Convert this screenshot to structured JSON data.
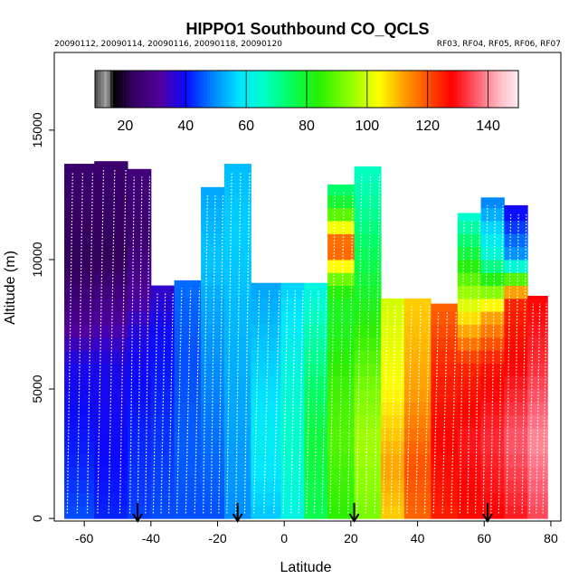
{
  "chart_data": {
    "type": "heatmap",
    "title": "HIPPO1 Southbound CO_QCLS",
    "subtitle_left": "20090112, 20090114, 20090116, 20090118, 20090120",
    "subtitle_right": "RF03, RF04, RF05, RF06, RF07",
    "xlabel": "Latitude",
    "ylabel": "Altitude (m)",
    "xlim": [
      -69,
      83
    ],
    "ylim": [
      -100,
      18000
    ],
    "xticks": [
      -60,
      -40,
      -20,
      0,
      20,
      40,
      60,
      80
    ],
    "yticks": [
      0,
      5000,
      10000,
      15000
    ],
    "colorbar": {
      "range": [
        10,
        150
      ],
      "ticks": [
        20,
        40,
        60,
        80,
        100,
        120,
        140
      ],
      "placement": "top-inside"
    },
    "arrows_latitude": [
      -44,
      -14,
      21,
      61
    ],
    "columns": [
      {
        "lat0": -66,
        "lat1": -57,
        "top": 13700,
        "values": [
          [
            0,
            45
          ],
          [
            2000,
            42
          ],
          [
            6000,
            38
          ],
          [
            8000,
            28
          ],
          [
            10000,
            22
          ],
          [
            14000,
            25
          ]
        ]
      },
      {
        "lat0": -57,
        "lat1": -47,
        "top": 13800,
        "values": [
          [
            0,
            42
          ],
          [
            2000,
            40
          ],
          [
            6000,
            38
          ],
          [
            8000,
            30
          ],
          [
            10000,
            22
          ],
          [
            14000,
            25
          ]
        ]
      },
      {
        "lat0": -47,
        "lat1": -40,
        "top": 13500,
        "values": [
          [
            0,
            44
          ],
          [
            3000,
            42
          ],
          [
            7000,
            38
          ],
          [
            9000,
            30
          ],
          [
            11000,
            25
          ],
          [
            14000,
            27
          ]
        ]
      },
      {
        "lat0": -40,
        "lat1": -33,
        "top": 9000,
        "values": [
          [
            0,
            45
          ],
          [
            3000,
            43
          ],
          [
            7000,
            40
          ],
          [
            9000,
            35
          ]
        ]
      },
      {
        "lat0": -33,
        "lat1": -25,
        "top": 9200,
        "values": [
          [
            0,
            45
          ],
          [
            3000,
            46
          ],
          [
            6000,
            45
          ],
          [
            9000,
            47
          ]
        ]
      },
      {
        "lat0": -25,
        "lat1": -18,
        "top": 12800,
        "values": [
          [
            0,
            45
          ],
          [
            4000,
            48
          ],
          [
            8000,
            52
          ],
          [
            10000,
            55
          ],
          [
            13000,
            52
          ]
        ]
      },
      {
        "lat0": -18,
        "lat1": -10,
        "top": 13700,
        "values": [
          [
            0,
            50
          ],
          [
            4000,
            52
          ],
          [
            8000,
            54
          ],
          [
            11000,
            56
          ],
          [
            14000,
            54
          ]
        ]
      },
      {
        "lat0": -10,
        "lat1": -1,
        "top": 9100,
        "values": [
          [
            0,
            55
          ],
          [
            3000,
            60
          ],
          [
            6000,
            56
          ],
          [
            9000,
            52
          ]
        ]
      },
      {
        "lat0": -1,
        "lat1": 6,
        "top": 9100,
        "values": [
          [
            0,
            62
          ],
          [
            3000,
            66
          ],
          [
            5000,
            64
          ],
          [
            8000,
            58
          ],
          [
            9000,
            56
          ]
        ]
      },
      {
        "lat0": 6,
        "lat1": 13,
        "top": 9100,
        "values": [
          [
            0,
            76
          ],
          [
            3000,
            78
          ],
          [
            5000,
            74
          ],
          [
            8000,
            66
          ],
          [
            9000,
            62
          ]
        ]
      },
      {
        "lat0": 13,
        "lat1": 21,
        "top": 12900,
        "values": [
          [
            0,
            84
          ],
          [
            3000,
            88
          ],
          [
            5000,
            86
          ],
          [
            8000,
            80
          ],
          [
            9000,
            84
          ],
          [
            10500,
            124
          ],
          [
            12000,
            82
          ],
          [
            13000,
            70
          ]
        ]
      },
      {
        "lat0": 21,
        "lat1": 29,
        "top": 13600,
        "values": [
          [
            0,
            92
          ],
          [
            3000,
            96
          ],
          [
            5000,
            92
          ],
          [
            8000,
            82
          ],
          [
            10000,
            76
          ],
          [
            12000,
            70
          ],
          [
            13600,
            66
          ]
        ]
      },
      {
        "lat0": 29,
        "lat1": 36,
        "top": 8500,
        "values": [
          [
            0,
            108
          ],
          [
            2000,
            112
          ],
          [
            5000,
            104
          ],
          [
            8500,
            100
          ]
        ]
      },
      {
        "lat0": 36,
        "lat1": 44,
        "top": 8500,
        "values": [
          [
            0,
            118
          ],
          [
            2000,
            120
          ],
          [
            5000,
            112
          ],
          [
            8500,
            108
          ]
        ]
      },
      {
        "lat0": 44,
        "lat1": 52,
        "top": 8300,
        "values": [
          [
            0,
            125
          ],
          [
            3000,
            128
          ],
          [
            6000,
            124
          ],
          [
            8300,
            118
          ]
        ]
      },
      {
        "lat0": 52,
        "lat1": 59,
        "top": 11800,
        "values": [
          [
            0,
            127
          ],
          [
            3000,
            130
          ],
          [
            6000,
            124
          ],
          [
            8000,
            104
          ],
          [
            10000,
            80
          ],
          [
            11800,
            64
          ]
        ]
      },
      {
        "lat0": 59,
        "lat1": 66,
        "top": 12400,
        "values": [
          [
            0,
            128
          ],
          [
            3000,
            132
          ],
          [
            6000,
            126
          ],
          [
            8000,
            110
          ],
          [
            10000,
            66
          ],
          [
            12400,
            48
          ]
        ]
      },
      {
        "lat0": 66,
        "lat1": 73,
        "top": 12100,
        "values": [
          [
            0,
            130
          ],
          [
            3000,
            136
          ],
          [
            6000,
            128
          ],
          [
            8500,
            124
          ],
          [
            10000,
            52
          ],
          [
            12100,
            38
          ]
        ]
      },
      {
        "lat0": 73,
        "lat1": 79,
        "top": 8600,
        "values": [
          [
            0,
            134
          ],
          [
            3000,
            140
          ],
          [
            6000,
            132
          ],
          [
            8600,
            128
          ]
        ]
      }
    ]
  }
}
